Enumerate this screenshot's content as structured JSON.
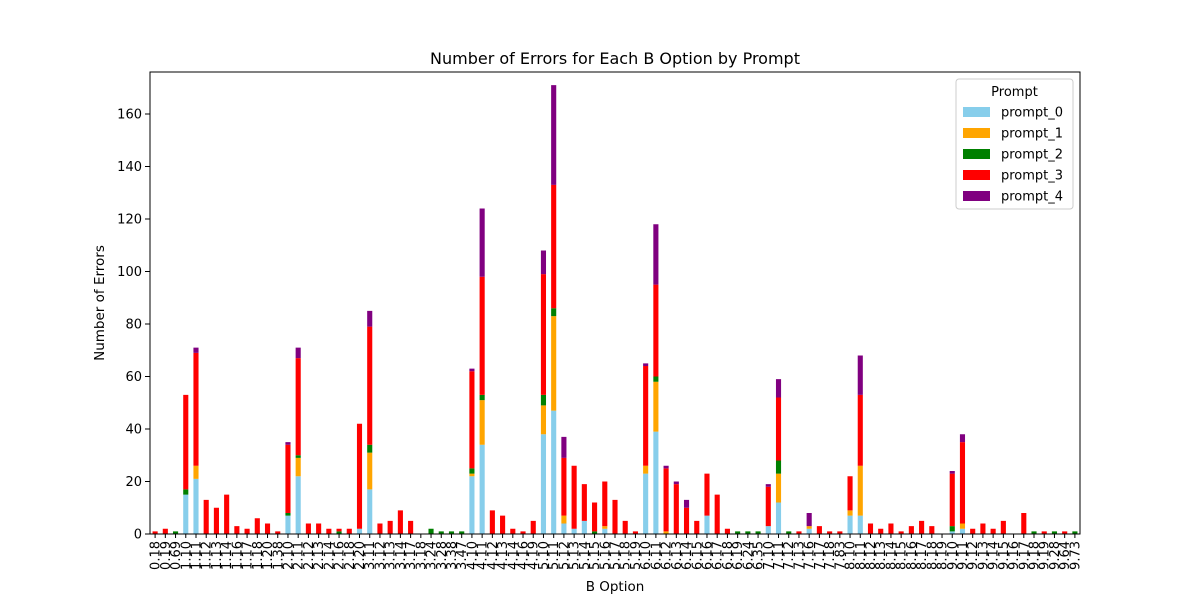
{
  "chart_data": {
    "type": "bar",
    "stacked": true,
    "title": "Number of Errors for Each B Option by Prompt",
    "xlabel": "B Option",
    "ylabel": "Number of Errors",
    "ylim": [
      0,
      176
    ],
    "yticks": [
      0,
      20,
      40,
      60,
      80,
      100,
      120,
      140,
      160
    ],
    "grid": false,
    "legend": {
      "title": "Prompt",
      "placement": "top-right"
    },
    "categories": [
      "0.18",
      "0.19",
      "0.69",
      "1.10",
      "1.11",
      "1.12",
      "1.13",
      "1.14",
      "1.16",
      "1.17",
      "1.18",
      "1.20",
      "1.38",
      "2.10",
      "2.11",
      "2.12",
      "2.13",
      "2.14",
      "2.16",
      "2.18",
      "2.20",
      "3.11",
      "3.12",
      "3.13",
      "3.14",
      "3.17",
      "3.18",
      "3.24",
      "3.28",
      "3.38",
      "3.47",
      "4.10",
      "4.11",
      "4.12",
      "4.13",
      "4.14",
      "4.16",
      "4.19",
      "5.10",
      "5.11",
      "5.12",
      "5.13",
      "5.14",
      "5.15",
      "5.16",
      "5.17",
      "5.18",
      "5.19",
      "6.10",
      "6.11",
      "6.12",
      "6.13",
      "6.14",
      "6.15",
      "6.16",
      "6.17",
      "6.18",
      "6.19",
      "6.24",
      "6.35",
      "7.10",
      "7.11",
      "7.12",
      "7.13",
      "7.16",
      "7.17",
      "7.18",
      "7.83",
      "8.10",
      "8.11",
      "8.12",
      "8.13",
      "8.14",
      "8.15",
      "8.16",
      "8.17",
      "8.18",
      "8.19",
      "9.10",
      "9.11",
      "9.12",
      "9.13",
      "9.14",
      "9.15",
      "9.16",
      "9.17",
      "9.18",
      "9.19",
      "9.28",
      "9.64",
      "9.73"
    ],
    "series": [
      {
        "name": "prompt_0",
        "color": "#87ceeb",
        "values": [
          0,
          0,
          0,
          15,
          21,
          0,
          0,
          0,
          0,
          0,
          0,
          0,
          0,
          7,
          22,
          0,
          0,
          0,
          0,
          0,
          2,
          17,
          0,
          0,
          0,
          0,
          0,
          0,
          0,
          0,
          0,
          22,
          34,
          0,
          0,
          0,
          0,
          0,
          38,
          47,
          4,
          2,
          5,
          0,
          2,
          0,
          0,
          0,
          23,
          39,
          0,
          0,
          0,
          0,
          7,
          0,
          0,
          0,
          0,
          0,
          3,
          12,
          0,
          0,
          2,
          0,
          0,
          0,
          7,
          7,
          0,
          0,
          0,
          0,
          0,
          0,
          0,
          0,
          1,
          2,
          0,
          0,
          0,
          0,
          0,
          0,
          0,
          0,
          0,
          0,
          0
        ]
      },
      {
        "name": "prompt_1",
        "color": "#ffa500",
        "values": [
          0,
          0,
          0,
          0,
          5,
          0,
          0,
          0,
          0,
          0,
          0,
          0,
          0,
          0,
          7,
          0,
          0,
          0,
          0,
          0,
          0,
          14,
          0,
          0,
          0,
          0,
          0,
          0,
          0,
          0,
          0,
          1,
          17,
          0,
          0,
          0,
          0,
          0,
          11,
          36,
          3,
          0,
          0,
          0,
          1,
          0,
          0,
          0,
          3,
          19,
          1,
          0,
          0,
          0,
          0,
          0,
          0,
          0,
          0,
          0,
          0,
          11,
          0,
          0,
          1,
          0,
          0,
          0,
          2,
          19,
          0,
          0,
          0,
          0,
          0,
          0,
          0,
          0,
          0,
          2,
          0,
          0,
          0,
          0,
          0,
          0,
          0,
          0,
          0,
          0,
          0
        ]
      },
      {
        "name": "prompt_2",
        "color": "#008000",
        "values": [
          0,
          0,
          1,
          2,
          0,
          0,
          0,
          0,
          0,
          0,
          0,
          0,
          0,
          1,
          1,
          0,
          0,
          0,
          1,
          0,
          0,
          3,
          0,
          0,
          0,
          0,
          0,
          2,
          1,
          1,
          1,
          2,
          2,
          0,
          0,
          0,
          0,
          0,
          4,
          3,
          0,
          0,
          0,
          1,
          0,
          0,
          0,
          0,
          0,
          2,
          0,
          0,
          0,
          0,
          0,
          0,
          0,
          1,
          1,
          1,
          0,
          5,
          1,
          0,
          0,
          0,
          0,
          0,
          0,
          0,
          0,
          0,
          0,
          0,
          0,
          0,
          0,
          0,
          2,
          0,
          0,
          0,
          0,
          0,
          0,
          0,
          1,
          0,
          1,
          0,
          1
        ]
      },
      {
        "name": "prompt_3",
        "color": "#ff0000",
        "values": [
          1,
          2,
          0,
          36,
          43,
          13,
          10,
          15,
          3,
          2,
          6,
          4,
          1,
          26,
          37,
          4,
          4,
          2,
          1,
          2,
          40,
          45,
          4,
          5,
          9,
          5,
          0,
          0,
          0,
          0,
          0,
          37,
          45,
          9,
          7,
          2,
          1,
          5,
          46,
          47,
          22,
          24,
          14,
          11,
          17,
          13,
          5,
          1,
          38,
          35,
          24,
          19,
          10,
          5,
          16,
          15,
          2,
          0,
          0,
          0,
          15,
          24,
          0,
          1,
          0,
          3,
          1,
          1,
          13,
          27,
          4,
          2,
          4,
          1,
          3,
          5,
          3,
          0,
          20,
          31,
          2,
          4,
          2,
          5,
          0,
          8,
          0,
          1,
          0,
          1,
          0
        ]
      },
      {
        "name": "prompt_4",
        "color": "#800080",
        "values": [
          0,
          0,
          0,
          0,
          2,
          0,
          0,
          0,
          0,
          0,
          0,
          0,
          0,
          1,
          4,
          0,
          0,
          0,
          0,
          0,
          0,
          6,
          0,
          0,
          0,
          0,
          0,
          0,
          0,
          0,
          0,
          1,
          26,
          0,
          0,
          0,
          0,
          0,
          9,
          38,
          8,
          0,
          0,
          0,
          0,
          0,
          0,
          0,
          1,
          23,
          1,
          1,
          3,
          0,
          0,
          0,
          0,
          0,
          0,
          0,
          1,
          7,
          0,
          0,
          5,
          0,
          0,
          0,
          0,
          15,
          0,
          0,
          0,
          0,
          0,
          0,
          0,
          0,
          1,
          3,
          0,
          0,
          0,
          0,
          0,
          0,
          0,
          0,
          0,
          0,
          0
        ]
      }
    ]
  }
}
